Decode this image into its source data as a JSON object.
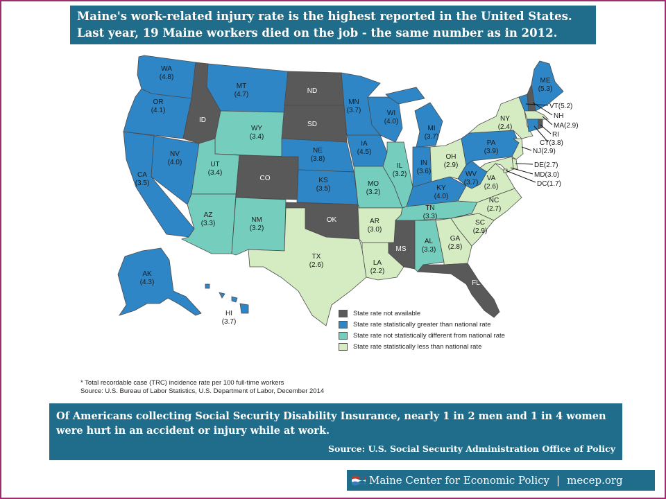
{
  "headline": {
    "line1": "Maine's work-related injury rate is the highest reported in the United States.",
    "line2": "Last year, 19 Maine workers died on the job - the same number as in 2012."
  },
  "colors": {
    "not_available": "#595959",
    "greater": "#2f86c6",
    "not_different": "#74cdbd",
    "less": "#d5ecc3"
  },
  "states": {
    "WA": {
      "abbr": "WA",
      "rate": "(4.8)",
      "category": "greater"
    },
    "OR": {
      "abbr": "OR",
      "rate": "(4.1)",
      "category": "greater"
    },
    "CA": {
      "abbr": "CA",
      "rate": "(3.5)",
      "category": "greater"
    },
    "NV": {
      "abbr": "NV",
      "rate": "(4.0)",
      "category": "greater"
    },
    "ID": {
      "abbr": "ID",
      "rate": "",
      "category": "not_available"
    },
    "MT": {
      "abbr": "MT",
      "rate": "(4.7)",
      "category": "greater"
    },
    "WY": {
      "abbr": "WY",
      "rate": "(3.4)",
      "category": "not_different"
    },
    "UT": {
      "abbr": "UT",
      "rate": "(3.4)",
      "category": "not_different"
    },
    "AZ": {
      "abbr": "AZ",
      "rate": "(3.3)",
      "category": "not_different"
    },
    "CO": {
      "abbr": "CO",
      "rate": "",
      "category": "not_available"
    },
    "NM": {
      "abbr": "NM",
      "rate": "(3.2)",
      "category": "not_different"
    },
    "ND": {
      "abbr": "ND",
      "rate": "",
      "category": "not_available"
    },
    "SD": {
      "abbr": "SD",
      "rate": "",
      "category": "not_available"
    },
    "NE": {
      "abbr": "NE",
      "rate": "(3.8)",
      "category": "greater"
    },
    "KS": {
      "abbr": "KS",
      "rate": "(3.5)",
      "category": "greater"
    },
    "OK": {
      "abbr": "OK",
      "rate": "",
      "category": "not_available"
    },
    "TX": {
      "abbr": "TX",
      "rate": "(2.6)",
      "category": "less"
    },
    "MN": {
      "abbr": "MN",
      "rate": "(3.7)",
      "category": "greater"
    },
    "IA": {
      "abbr": "IA",
      "rate": "(4.5)",
      "category": "greater"
    },
    "MO": {
      "abbr": "MO",
      "rate": "(3.2)",
      "category": "not_different"
    },
    "AR": {
      "abbr": "AR",
      "rate": "(3.0)",
      "category": "less"
    },
    "LA": {
      "abbr": "LA",
      "rate": "(2.2)",
      "category": "less"
    },
    "WI": {
      "abbr": "WI",
      "rate": "(4.0)",
      "category": "greater"
    },
    "IL": {
      "abbr": "IL",
      "rate": "(3.2)",
      "category": "not_different"
    },
    "MS": {
      "abbr": "MS",
      "rate": "",
      "category": "not_available"
    },
    "MI": {
      "abbr": "MI",
      "rate": "(3.7)",
      "category": "greater"
    },
    "IN": {
      "abbr": "IN",
      "rate": "(3.6)",
      "category": "greater"
    },
    "KY": {
      "abbr": "KY",
      "rate": "(4.0)",
      "category": "greater"
    },
    "TN": {
      "abbr": "TN",
      "rate": "(3.3)",
      "category": "not_different"
    },
    "AL": {
      "abbr": "AL",
      "rate": "(3.3)",
      "category": "not_different"
    },
    "OH": {
      "abbr": "OH",
      "rate": "(2.9)",
      "category": "less"
    },
    "WV": {
      "abbr": "WV",
      "rate": "(3.7)",
      "category": "greater"
    },
    "VA": {
      "abbr": "VA",
      "rate": "(2.6)",
      "category": "less"
    },
    "NC": {
      "abbr": "NC",
      "rate": "(2.7)",
      "category": "less"
    },
    "SC": {
      "abbr": "SC",
      "rate": "(2.9)",
      "category": "less"
    },
    "GA": {
      "abbr": "GA",
      "rate": "(2.8)",
      "category": "less"
    },
    "FL": {
      "abbr": "FL",
      "rate": "",
      "category": "not_available"
    },
    "PA": {
      "abbr": "PA",
      "rate": "(3.9)",
      "category": "greater"
    },
    "NY": {
      "abbr": "NY",
      "rate": "(2.4)",
      "category": "less"
    },
    "ME": {
      "abbr": "ME",
      "rate": "(5.3)",
      "category": "greater"
    },
    "AK": {
      "abbr": "AK",
      "rate": "(4.3)",
      "category": "greater"
    },
    "HI": {
      "abbr": "HI",
      "rate": "(3.7)",
      "category": "greater"
    },
    "VT": {
      "label": "VT(5.2)",
      "category": "greater"
    },
    "NH": {
      "label": "NH",
      "category": "not_available"
    },
    "MA": {
      "label": "MA(2.9)",
      "category": "less"
    },
    "RI": {
      "label": "RI",
      "category": "not_available"
    },
    "CT": {
      "label": "CT(3.8)",
      "category": "greater"
    },
    "NJ": {
      "label": "NJ(2.9)",
      "category": "less"
    },
    "DE": {
      "label": "DE(2.7)",
      "category": "less"
    },
    "MD": {
      "label": "MD(3.0)",
      "category": "less"
    },
    "DC": {
      "label": "DC(1.7)",
      "category": "less"
    }
  },
  "legend": [
    {
      "key": "not_available",
      "label": "State rate not available"
    },
    {
      "key": "greater",
      "label": "State rate statistically greater than national rate"
    },
    {
      "key": "not_different",
      "label": "State rate not statistically different from national rate"
    },
    {
      "key": "less",
      "label": "State rate statistically less than national rate"
    }
  ],
  "footnote": "* Total recordable case (TRC) incidence rate per 100 full-time workers",
  "source": "Source: U.S. Bureau of Labor Statistics, U.S. Department of Labor, December 2014",
  "callout": {
    "line1": "Of Americans collecting Social Security Disability Insurance, nearly 1 in 2 men and 1 in 4 women",
    "line2": "were hurt in an accident or injury while at work.",
    "source": "Source: U.S. Social Security Administration Office of Policy"
  },
  "footer": {
    "org": "Maine Center for Economic Policy",
    "divider": "|",
    "site": "mecep.org"
  }
}
